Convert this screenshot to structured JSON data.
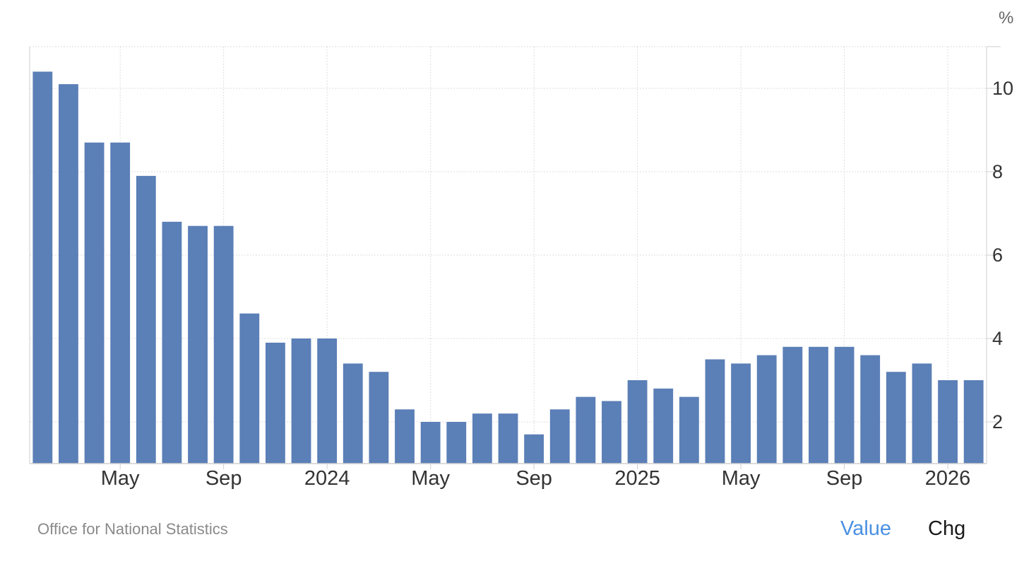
{
  "chart_data": {
    "type": "bar",
    "unit": "%",
    "x_tick_labels": [
      "May",
      "Sep",
      "2024",
      "May",
      "Sep",
      "2025",
      "May",
      "Sep",
      "2026"
    ],
    "x_tick_positions": [
      3,
      7,
      11,
      15,
      19,
      23,
      27,
      31,
      35
    ],
    "categories": [
      "2023-01",
      "2023-02",
      "2023-03",
      "2023-04",
      "2023-05",
      "2023-06",
      "2023-07",
      "2023-08",
      "2023-09",
      "2023-10",
      "2023-11",
      "2023-12",
      "2024-01",
      "2024-02",
      "2024-03",
      "2024-04",
      "2024-05",
      "2024-06",
      "2024-07",
      "2024-08",
      "2024-09",
      "2024-10",
      "2024-11",
      "2024-12",
      "2025-01",
      "2025-02",
      "2025-03",
      "2025-04",
      "2025-05",
      "2025-06",
      "2025-07",
      "2025-08",
      "2025-09",
      "2025-10",
      "2025-11",
      "2025-12",
      "2026-01"
    ],
    "values": [
      10.4,
      10.1,
      8.7,
      8.7,
      7.9,
      6.8,
      6.7,
      6.7,
      4.6,
      3.9,
      4.0,
      4.0,
      3.4,
      3.2,
      2.3,
      2.0,
      2.0,
      2.2,
      2.2,
      1.7,
      2.3,
      2.6,
      2.5,
      3.0,
      2.8,
      2.6,
      3.5,
      3.4,
      3.6,
      3.8,
      3.8,
      3.8,
      3.6,
      3.2,
      3.4,
      3.0,
      3.0
    ],
    "y_ticks": [
      2,
      4,
      6,
      8,
      10
    ],
    "ylim": [
      1,
      11
    ],
    "grid": true,
    "bar_color": "#5b7fb7",
    "axis_color": "#cfcfcf",
    "grid_color": "#dddddd"
  },
  "footer": {
    "source": "Office for National Statistics",
    "toggle_value": "Value",
    "toggle_chg": "Chg",
    "active_color": "#4a90e2"
  }
}
